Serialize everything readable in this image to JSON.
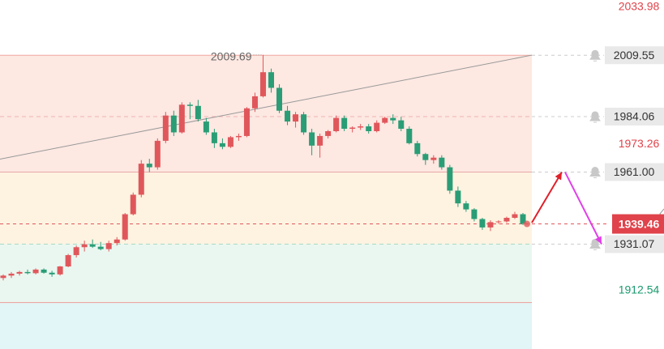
{
  "chart_data": {
    "type": "candlestick",
    "ylim": [
      1887.5,
      2032.5
    ],
    "open": [
      1917,
      1918,
      1918.8,
      1919.5,
      1919,
      1920.5,
      1919.2,
      1918.5,
      1921.8,
      1926.5,
      1929.8,
      1931,
      1930,
      1929,
      1931.5,
      1933,
      1943.5,
      1951.6,
      1964.5,
      1963,
      1974,
      1984.5,
      1977.5,
      1989,
      1988.5,
      1982,
      1977.5,
      1973,
      1971.5,
      1975.5,
      1976,
      1987.5,
      1992.5,
      2002.5,
      1996,
      1986.5,
      1982,
      1985,
      1977.5,
      1972,
      1976,
      1978,
      1983.5,
      1979,
      1979.5,
      1980,
      1978,
      1981.5,
      1983.5,
      1982.5,
      1979,
      1973,
      1968.5,
      1966,
      1967,
      1963,
      1953.3,
      1948,
      1945.5,
      1941.5,
      1938,
      1940.2,
      1940.5,
      1942,
      1943.5
    ],
    "high": [
      1918.5,
      1919.5,
      1920,
      1920.5,
      1921,
      1921,
      1920,
      1922,
      1927,
      1930.5,
      1932.5,
      1933,
      1932,
      1932.5,
      1934,
      1944,
      1952.5,
      1966,
      1966.5,
      1975,
      1986,
      1986.5,
      1990,
      1990,
      1991,
      1983.5,
      1979,
      1975,
      1976,
      1977,
      1988,
      1994,
      2009.69,
      2004,
      1997.5,
      1988.5,
      1986,
      1986,
      1979,
      1977,
      1978.5,
      1984.5,
      1984.5,
      1980,
      1981,
      1981,
      1982.5,
      1984,
      1985,
      1984,
      1980,
      1974,
      1969,
      1968,
      1968,
      1964,
      1955,
      1949,
      1946,
      1942,
      1941,
      1941,
      1942.5,
      1944.5,
      1944
    ],
    "low": [
      1916,
      1917,
      1918,
      1918.5,
      1918.5,
      1918.8,
      1917.5,
      1918,
      1921.5,
      1925.5,
      1928,
      1929.5,
      1928.5,
      1928,
      1930.5,
      1932.5,
      1943,
      1950.5,
      1961,
      1962,
      1973,
      1976,
      1977,
      1983,
      1982,
      1976.5,
      1971,
      1970.5,
      1971,
      1974,
      1975.5,
      1986,
      1992,
      1994,
      1985.5,
      1980.5,
      1979.5,
      1976.5,
      1968,
      1967,
      1975,
      1977.5,
      1978,
      1977.5,
      1978.5,
      1977,
      1977.5,
      1981,
      1981,
      1978,
      1972.5,
      1967.5,
      1964,
      1964.5,
      1962,
      1952,
      1946.5,
      1944.5,
      1940.5,
      1937,
      1936.5,
      1939.5,
      1940,
      1941.5,
      1939
    ],
    "close": [
      1918,
      1918.8,
      1919.5,
      1919,
      1920.5,
      1919.2,
      1918.5,
      1921.8,
      1926.5,
      1929.8,
      1931,
      1930,
      1929,
      1931.5,
      1933,
      1943.5,
      1951.6,
      1964.5,
      1963,
      1974,
      1984.5,
      1977.5,
      1989,
      1988.5,
      1983,
      1977.5,
      1973,
      1971.5,
      1975.5,
      1976,
      1987.5,
      1992.5,
      2002.5,
      1996,
      1986.5,
      1982,
      1985,
      1977.5,
      1972,
      1976,
      1978,
      1983.5,
      1979,
      1979.5,
      1980,
      1978,
      1981.5,
      1983.5,
      1982.5,
      1979,
      1973,
      1968.5,
      1966,
      1967,
      1963,
      1953.3,
      1948,
      1945.5,
      1941.5,
      1938,
      1940.2,
      1940.5,
      1942,
      1943.5,
      1939.5
    ],
    "up_color": "#e0575b",
    "down_color": "#2a9d76",
    "high_marker": 2009.69,
    "zones": [
      {
        "from": 2009.55,
        "to": 1961,
        "color": "#fde8e2"
      },
      {
        "from": 1961,
        "to": 1931.07,
        "color": "#fef3e1"
      },
      {
        "from": 1931.07,
        "to": 1906.8,
        "color": "#eaf7f0"
      },
      {
        "from": 1906.8,
        "to": 1887.5,
        "color": "#e2f5f7"
      }
    ],
    "trendline": [
      1966.4,
      2009.6
    ],
    "levels": [
      {
        "value": 2009.55,
        "label": "2009.55"
      },
      {
        "value": 1984.06,
        "label": "1984.06"
      },
      {
        "value": 1961,
        "label": "1961.00"
      },
      {
        "value": 1931.07,
        "label": "1931.07"
      }
    ],
    "yticks": [
      2033.98,
      1973.26,
      1912.54
    ],
    "ytick_colors": [
      "#e0434b",
      "#e0434b",
      "#1a9a6c"
    ],
    "last_price": 1939.46,
    "forecast": [
      1940,
      1961,
      1931.07
    ]
  }
}
